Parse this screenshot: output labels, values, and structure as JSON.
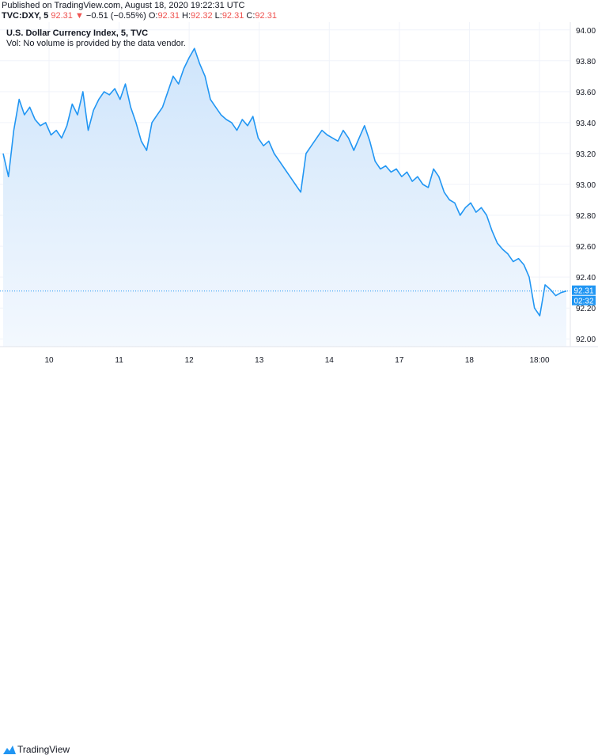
{
  "header": {
    "published": "Published on TradingView.com, August 18, 2020 19:22:31 UTC",
    "symbol": "TVC:DXY, 5",
    "last": "92.31",
    "change_arrow": "▼",
    "change": "−0.51 (−0.55%)",
    "o_label": "O:",
    "o_value": "92.31",
    "h_label": "H:",
    "h_value": "92.32",
    "l_label": "L:",
    "l_value": "92.31",
    "c_label": "C:",
    "c_value": "92.31"
  },
  "legend": {
    "title": "U.S. Dollar Currency Index, 5, TVC",
    "vol_note": "Vol: No volume is provided by the data vendor."
  },
  "price_label": {
    "value": "92.31",
    "countdown": "02:32"
  },
  "footer": {
    "brand": "TradingView"
  },
  "colors": {
    "line": "#2196f3",
    "fill_top": "#cfe5fb",
    "fill_bottom": "#f3f8fe",
    "price_badge": "#2196f3",
    "down": "#ef5350"
  },
  "chart_data": {
    "type": "area",
    "x_ticks": [
      "10",
      "11",
      "12",
      "13",
      "14",
      "17",
      "18",
      "18:00"
    ],
    "y_ticks": [
      "94.00",
      "93.80",
      "93.60",
      "93.40",
      "93.20",
      "93.00",
      "92.80",
      "92.60",
      "92.40",
      "92.20",
      "92.00"
    ],
    "ylim": [
      91.95,
      94.05
    ],
    "series": [
      {
        "values": [
          93.2,
          93.05,
          93.35,
          93.55,
          93.45,
          93.5,
          93.42,
          93.38,
          93.4,
          93.32,
          93.35,
          93.3,
          93.38,
          93.52,
          93.45,
          93.6,
          93.35,
          93.48,
          93.55,
          93.6,
          93.58,
          93.62,
          93.55,
          93.65,
          93.5,
          93.4,
          93.28,
          93.22,
          93.4,
          93.45,
          93.5,
          93.6,
          93.7,
          93.65,
          93.75,
          93.82,
          93.88,
          93.78,
          93.7,
          93.55,
          93.5,
          93.45,
          93.42,
          93.4,
          93.35,
          93.42,
          93.38,
          93.44,
          93.3,
          93.25,
          93.28,
          93.2,
          93.15,
          93.1,
          93.05,
          93.0,
          92.95,
          93.2,
          93.25,
          93.3,
          93.35,
          93.32,
          93.3,
          93.28,
          93.35,
          93.3,
          93.22,
          93.3,
          93.38,
          93.28,
          93.15,
          93.1,
          93.12,
          93.08,
          93.1,
          93.05,
          93.08,
          93.02,
          93.05,
          93.0,
          92.98,
          93.1,
          93.05,
          92.95,
          92.9,
          92.88,
          92.8,
          92.85,
          92.88,
          92.82,
          92.85,
          92.8,
          92.7,
          92.62,
          92.58,
          92.55,
          92.5,
          92.52,
          92.48,
          92.4,
          92.2,
          92.15,
          92.35,
          92.32,
          92.28,
          92.3,
          92.31
        ]
      }
    ],
    "last_value": 92.31,
    "grid": true
  }
}
